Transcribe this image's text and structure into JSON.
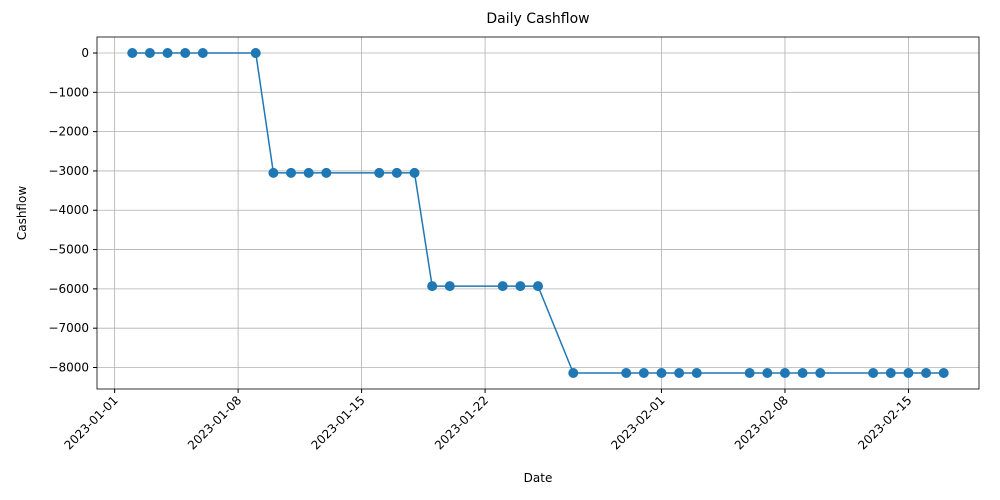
{
  "chart_data": {
    "type": "line",
    "title": "Daily Cashflow",
    "x_label": "Date",
    "y_label": "Cashflow",
    "x": [
      "2023-01-02",
      "2023-01-03",
      "2023-01-04",
      "2023-01-05",
      "2023-01-06",
      "2023-01-09",
      "2023-01-10",
      "2023-01-11",
      "2023-01-12",
      "2023-01-13",
      "2023-01-16",
      "2023-01-17",
      "2023-01-18",
      "2023-01-19",
      "2023-01-20",
      "2023-01-23",
      "2023-01-24",
      "2023-01-25",
      "2023-01-27",
      "2023-01-30",
      "2023-01-31",
      "2023-02-01",
      "2023-02-02",
      "2023-02-03",
      "2023-02-06",
      "2023-02-07",
      "2023-02-08",
      "2023-02-09",
      "2023-02-10",
      "2023-02-13",
      "2023-02-14",
      "2023-02-15",
      "2023-02-16",
      "2023-02-17"
    ],
    "series": [
      {
        "color": "#1f77b4",
        "values": [
          0,
          0,
          0,
          0,
          0,
          0,
          -3050,
          -3050,
          -3050,
          -3050,
          -3050,
          -3050,
          -3050,
          -5930,
          -5930,
          -5930,
          -5930,
          -5930,
          -8140,
          -8140,
          -8140,
          -8140,
          -8140,
          -8140,
          -8140,
          -8140,
          -8140,
          -8140,
          -8140,
          -8140,
          -8140,
          -8140,
          -8140,
          -8140
        ]
      }
    ],
    "xlim": [
      "2022-12-31",
      "2023-02-19"
    ],
    "xticks": [
      "2023-01-01",
      "2023-01-08",
      "2023-01-15",
      "2023-01-22",
      "2023-02-01",
      "2023-02-08",
      "2023-02-15"
    ],
    "ylim": [
      -8547,
      407
    ],
    "yticks": [
      0,
      {
        "value": -1000,
        "label": "−1000"
      },
      {
        "value": -2000,
        "label": "−2000"
      },
      {
        "value": -3000,
        "label": "−3000"
      },
      {
        "value": -4000,
        "label": "−4000"
      },
      {
        "value": -5000,
        "label": "−5000"
      },
      {
        "value": -6000,
        "label": "−6000"
      },
      {
        "value": -7000,
        "label": "−7000"
      },
      {
        "value": -8000,
        "label": "−8000"
      }
    ],
    "grid": true
  }
}
